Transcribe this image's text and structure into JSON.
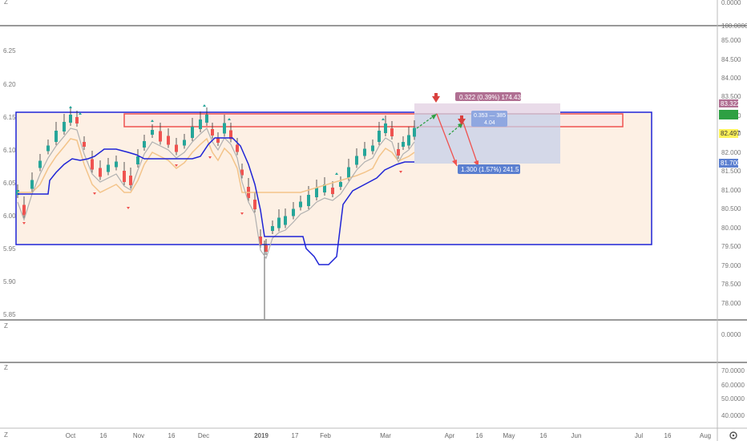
{
  "top_pane": {
    "axis_label": "0.0000"
  },
  "main_pane": {
    "left_axis": [
      "6.25",
      "6.20",
      "6.15",
      "6.10",
      "6.05",
      "6.00",
      "5.95",
      "5.90",
      "5.85"
    ],
    "right_axis": [
      "85.000",
      "84.500",
      "84.000",
      "83.500",
      "83.000",
      "82.500",
      "82.000",
      "81.500",
      "81.000",
      "80.500",
      "80.000",
      "79.500",
      "79.000",
      "78.500",
      "78.000"
    ],
    "right_axis_top": "100.0000",
    "price_tags": {
      "upper": "83.322",
      "current": "82.497",
      "lower": "81.700",
      "green_tag": ""
    }
  },
  "annotations": {
    "upper_label": "0.322 (0.39%) 174.43",
    "mid_label_1": "0.353 — 385",
    "mid_label_2": "4.04",
    "lower_label": "1.300 (1.57%) 241.5"
  },
  "osc_pane_1": {
    "axis": [
      "0.0000"
    ]
  },
  "osc_pane_2": {
    "axis": [
      "70.0000",
      "60.0000",
      "50.0000",
      "40.0000"
    ]
  },
  "time_axis": [
    "Oct",
    "16",
    "Nov",
    "16",
    "Dec",
    "2019",
    "17",
    "Feb",
    "Mar",
    "Apr",
    "16",
    "May",
    "16",
    "Jun",
    "Jul",
    "16",
    "Aug"
  ],
  "corner_labels": {
    "bottom_left": "Z",
    "top_right_axis": "0.0000"
  },
  "colors": {
    "up": "#26a69a",
    "down": "#ef5350",
    "channel": "#1f24d6",
    "zone_fill": "#fdf0e4",
    "zone_border": "#ef5350",
    "target_fill": "#e9dbe9",
    "target_blue": "#c6d0ea",
    "tag_purple": "#b06f92",
    "tag_blue": "#5b7fd0",
    "tag_yellow": "#fff25a",
    "tag_green": "#2ea043"
  }
}
